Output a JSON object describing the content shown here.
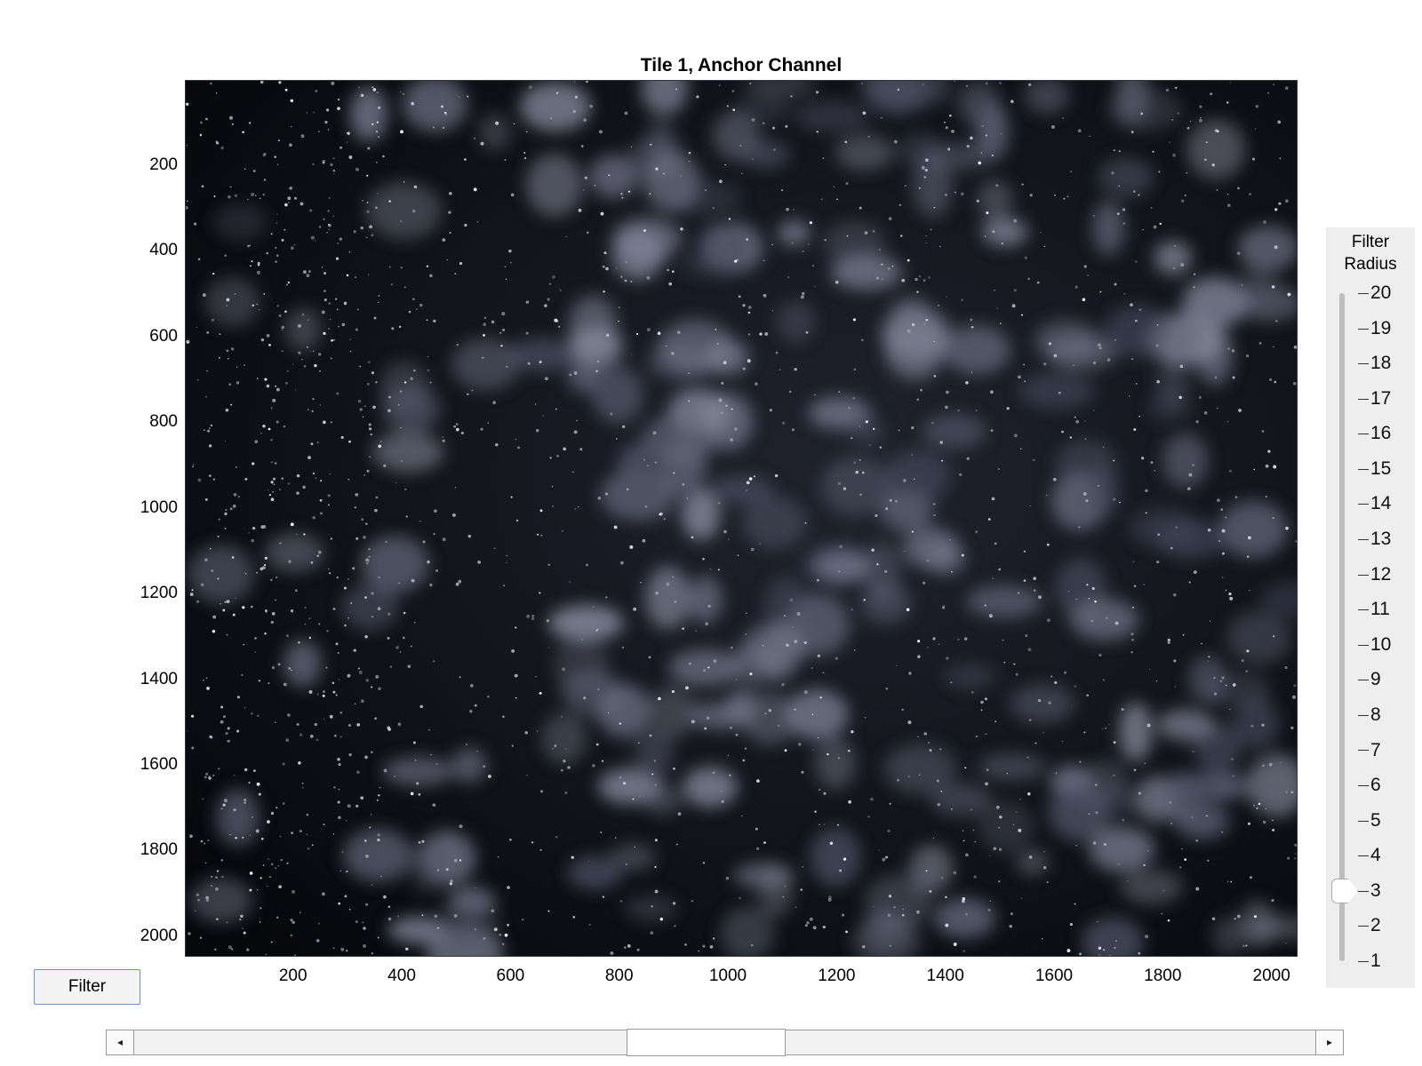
{
  "plot": {
    "title": "Tile 1, Anchor Channel",
    "image_description_colormap": "bone",
    "x_axis": {
      "ticks": [
        "200",
        "400",
        "600",
        "800",
        "1000",
        "1200",
        "1400",
        "1600",
        "1800",
        "2000"
      ],
      "tick_values": [
        200,
        400,
        600,
        800,
        1000,
        1200,
        1400,
        1600,
        1800,
        2000
      ],
      "range": [
        1,
        2048
      ]
    },
    "y_axis": {
      "ticks": [
        "200",
        "400",
        "600",
        "800",
        "1000",
        "1200",
        "1400",
        "1600",
        "1800",
        "2000"
      ],
      "tick_values": [
        200,
        400,
        600,
        800,
        1000,
        1200,
        1400,
        1600,
        1800,
        2000
      ],
      "range": [
        1,
        2048
      ],
      "reversed": true
    }
  },
  "controls": {
    "filter_button_label": "Filter"
  },
  "slider": {
    "label_line1": "Filter",
    "label_line2": "Radius",
    "min": 1,
    "max": 20,
    "value": 3,
    "ticks": [
      "20",
      "19",
      "18",
      "17",
      "16",
      "15",
      "14",
      "13",
      "12",
      "11",
      "10",
      "9",
      "8",
      "7",
      "6",
      "5",
      "4",
      "3",
      "2",
      "1"
    ]
  },
  "hscroll": {
    "left_arrow": "◂",
    "right_arrow": "▸",
    "thumb_start": 0.416,
    "thumb_fraction": 0.135
  }
}
